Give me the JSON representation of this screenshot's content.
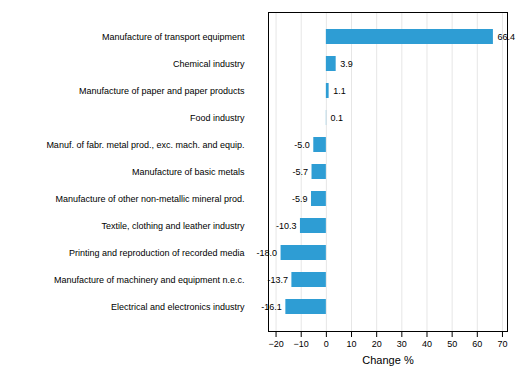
{
  "chart_data": {
    "type": "bar",
    "orientation": "horizontal",
    "categories": [
      "Electrical and electronics industry",
      "Manufacture of machinery and equipment n.e.c.",
      "Printing and reproduction of recorded media",
      "Textile, clothing and leather industry",
      "Manufacture of other non-metallic mineral prod.",
      "Manufacture of basic metals",
      "Manuf. of fabr. metal prod., exc. mach. and equip.",
      "Food industry",
      "Manufacture of paper and paper products",
      "Chemical industry",
      "Manufacture of transport equipment"
    ],
    "values": [
      -16.1,
      -13.7,
      -18.0,
      -10.3,
      -5.9,
      -5.7,
      -5.0,
      0.1,
      1.1,
      3.9,
      66.4
    ],
    "value_labels": [
      "-16.1",
      "-13.7",
      "-18.0",
      "-10.3",
      "-5.9",
      "-5.7",
      "-5.0",
      "0.1",
      "1.1",
      "3.9",
      "66.4"
    ],
    "data_labels": true,
    "color": "#2e9dd4",
    "xlabel": "Change %",
    "xlim": [
      -23,
      72
    ],
    "xticks": [
      -20,
      -10,
      0,
      10,
      20,
      30,
      40,
      50,
      60,
      70
    ],
    "grid": true
  }
}
